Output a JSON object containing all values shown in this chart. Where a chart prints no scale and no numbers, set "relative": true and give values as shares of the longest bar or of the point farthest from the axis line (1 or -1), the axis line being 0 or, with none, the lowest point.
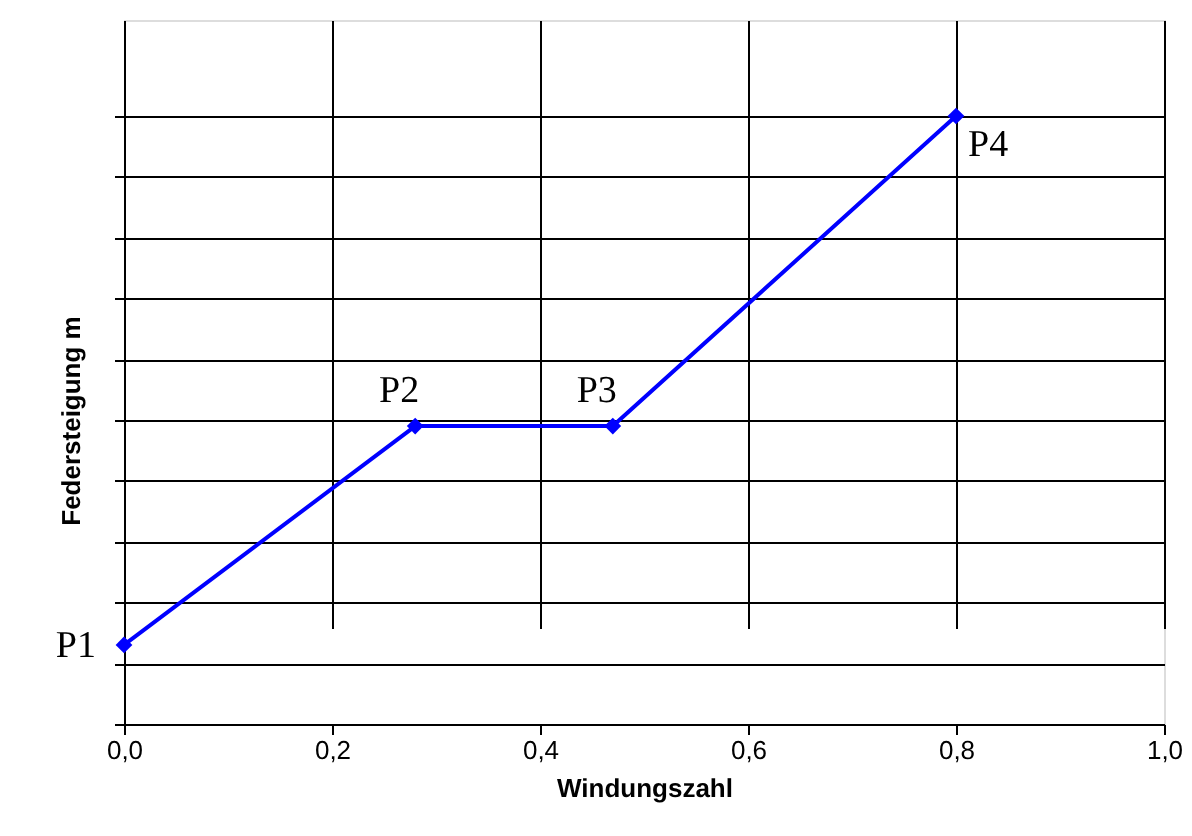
{
  "chart_data": {
    "type": "line",
    "relative": true,
    "xlabel": "Windungszahl",
    "ylabel": "Federsteigung m",
    "x": [
      0,
      0.28,
      0.47,
      0.8
    ],
    "series": [
      {
        "color": "#0000ff",
        "values": [
          0.13,
          0.49,
          0.49,
          1.0
        ]
      }
    ],
    "xlim": [
      0,
      1
    ],
    "xticks": [
      {
        "value": 0,
        "label": "0,0"
      },
      {
        "value": 0.2,
        "label": "0,2"
      },
      {
        "value": 0.4,
        "label": "0,4"
      },
      {
        "value": 0.6,
        "label": "0,6"
      },
      {
        "value": 0.8,
        "label": "0,8"
      },
      {
        "value": 1,
        "label": "1,0"
      }
    ],
    "annotations": [
      {
        "text": "P1",
        "x": 0,
        "y": 0.13
      },
      {
        "text": "P2",
        "x": 0.28,
        "y": 0.49
      },
      {
        "text": "P3",
        "x": 0.47,
        "y": 0.49
      },
      {
        "text": "P4",
        "x": 0.8,
        "y": 1.0
      }
    ],
    "grid": true,
    "tick_labels": "x",
    "marker": "diamond",
    "line_style": "solid"
  }
}
